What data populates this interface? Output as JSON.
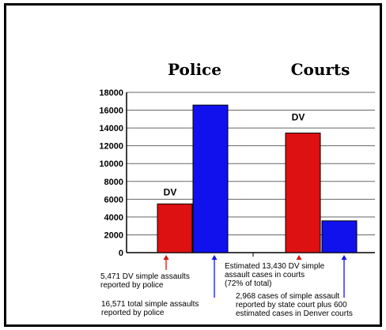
{
  "chart_data": {
    "type": "bar",
    "groups": [
      "Police",
      "Courts"
    ],
    "series": [
      {
        "color": "#dd1111",
        "values": [
          5471,
          13430
        ]
      },
      {
        "color": "#1111ee",
        "values": [
          16571,
          3568
        ]
      }
    ],
    "ylim": [
      0,
      18000
    ],
    "yticks": [
      0,
      2000,
      4000,
      6000,
      8000,
      10000,
      12000,
      14000,
      16000,
      18000
    ],
    "ytick_labels": [
      "0",
      "2000",
      "4000",
      "6000",
      "8000",
      "10000",
      "12000",
      "14000",
      "16000",
      "18000"
    ],
    "grid": true,
    "bar_labels": [
      "DV",
      "DV"
    ]
  },
  "annotations": [
    {
      "lines": [
        "5,471 DV simple assaults",
        "reported by police"
      ],
      "arrow_color": "#dd1111",
      "points_to": "Police DV bar"
    },
    {
      "lines": [
        "16,571 total simple assaults",
        "reported by police"
      ],
      "arrow_color": "#1111ee",
      "points_to": "Police total bar"
    },
    {
      "lines": [
        "Estimated 13,430 DV simple",
        "assault cases in courts",
        "(72% of total)"
      ],
      "arrow_color": "#dd1111",
      "points_to": "Courts DV bar"
    },
    {
      "lines": [
        "2,968 cases of simple assault",
        "reported by state court plus 600",
        "estimated cases in Denver courts"
      ],
      "arrow_color": "#1111ee",
      "points_to": "Courts total bar"
    }
  ]
}
